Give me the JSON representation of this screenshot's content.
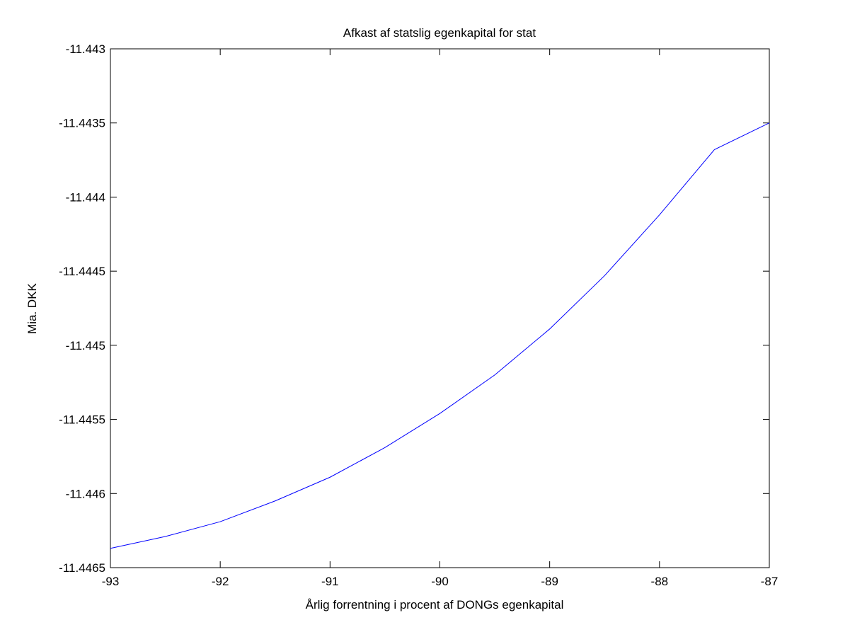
{
  "chart_data": {
    "type": "line",
    "title": "Afkast af statslig egenkapital for stat",
    "xlabel": "Årlig forrentning i procent af DONGs egenkapital",
    "ylabel": "Mia. DKK",
    "xlim": [
      -93,
      -87
    ],
    "ylim": [
      -11.4465,
      -11.443
    ],
    "xticks": [
      -93,
      -92,
      -91,
      -90,
      -89,
      -88,
      -87
    ],
    "xtick_labels": [
      "-93",
      "-92",
      "-91",
      "-90",
      "-89",
      "-88",
      "-87"
    ],
    "yticks": [
      -11.4465,
      -11.446,
      -11.4455,
      -11.445,
      -11.4445,
      -11.444,
      -11.4435,
      -11.443
    ],
    "ytick_labels": [
      "-11.4465",
      "-11.446",
      "-11.4455",
      "-11.445",
      "-11.4445",
      "-11.444",
      "-11.4435",
      "-11.443"
    ],
    "grid": false,
    "colors": {
      "line": "#0000ff",
      "axes": "#000000",
      "background": "#ffffff"
    },
    "series": [
      {
        "x": [
          -93,
          -92.5,
          -92,
          -91.5,
          -91,
          -90.5,
          -90,
          -89.5,
          -89,
          -88.5,
          -88,
          -87.5,
          -87
        ],
        "y": [
          -11.44637,
          -11.44629,
          -11.44619,
          -11.44605,
          -11.44589,
          -11.44569,
          -11.44546,
          -11.4452,
          -11.44489,
          -11.44453,
          -11.44412,
          -11.44368,
          -11.4435
        ]
      }
    ]
  }
}
